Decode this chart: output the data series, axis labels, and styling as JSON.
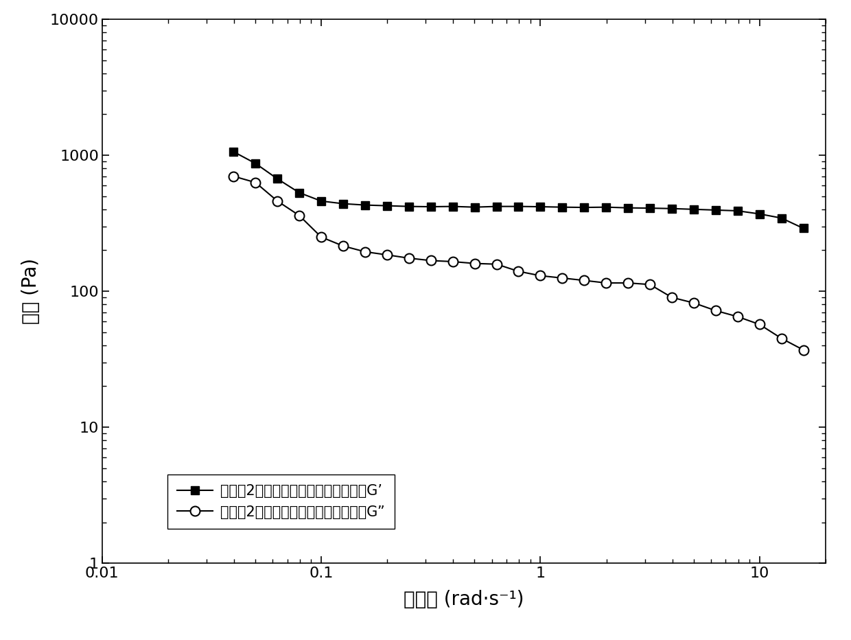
{
  "G_prime_x": [
    0.0398,
    0.0501,
    0.0631,
    0.0794,
    0.1,
    0.1259,
    0.1585,
    0.1995,
    0.2512,
    0.3162,
    0.3981,
    0.5012,
    0.631,
    0.7943,
    1.0,
    1.2589,
    1.5849,
    1.9953,
    2.5119,
    3.1623,
    3.9811,
    5.0119,
    6.3096,
    7.9433,
    10.0,
    12.589,
    15.849
  ],
  "G_prime_y": [
    1060,
    870,
    670,
    530,
    460,
    440,
    430,
    425,
    420,
    418,
    420,
    415,
    420,
    420,
    418,
    415,
    413,
    415,
    410,
    408,
    405,
    400,
    395,
    390,
    370,
    345,
    290
  ],
  "G_double_prime_x": [
    0.0398,
    0.0501,
    0.0631,
    0.0794,
    0.1,
    0.1259,
    0.1585,
    0.1995,
    0.2512,
    0.3162,
    0.3981,
    0.5012,
    0.631,
    0.7943,
    1.0,
    1.2589,
    1.5849,
    1.9953,
    2.5119,
    3.1623,
    3.9811,
    5.0119,
    6.3096,
    7.9433,
    10.0,
    12.589,
    15.849
  ],
  "G_double_prime_y": [
    700,
    630,
    460,
    360,
    250,
    215,
    195,
    185,
    175,
    168,
    165,
    160,
    158,
    140,
    130,
    125,
    120,
    115,
    115,
    112,
    90,
    82,
    72,
    65,
    57,
    45,
    37
  ],
  "xlabel": "角频率 (rad·s⁻¹)",
  "ylabel": "模量 (Pa)",
  "legend1": "实施例2所述的耐温型复合清洁压裂液G’",
  "legend2": "实施例2所述的耐温型复合清洁压裂液G”",
  "xlim": [
    0.01,
    20
  ],
  "ylim": [
    1,
    10000
  ],
  "background_color": "#ffffff",
  "line_color": "#000000",
  "marker_size_square": 9,
  "marker_size_circle": 10,
  "linewidth": 1.5
}
